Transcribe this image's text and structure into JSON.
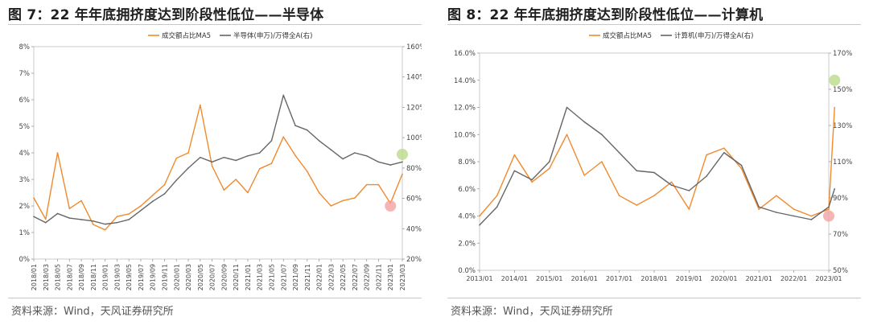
{
  "left": {
    "title": "图 7：22 年年底拥挤度达到阶段性低位——半导体",
    "source": "资料来源：Wind，天风证券研究所",
    "chart_data": {
      "type": "line",
      "legend": [
        "成交额占比MA5",
        "半导体(申万)/万得全A(右)"
      ],
      "legend_placement": "top-center",
      "x_ticks": [
        "2018/01",
        "2018/03",
        "2018/05",
        "2018/07",
        "2018/09",
        "2018/11",
        "2019/01",
        "2019/03",
        "2019/05",
        "2019/07",
        "2019/09",
        "2019/11",
        "2020/01",
        "2020/03",
        "2020/05",
        "2020/07",
        "2020/09",
        "2020/11",
        "2021/01",
        "2021/03",
        "2021/05",
        "2021/07",
        "2021/09",
        "2021/11",
        "2022/01",
        "2022/03",
        "2022/05",
        "2022/07",
        "2022/09",
        "2022/11",
        "2023/01",
        "2023/03"
      ],
      "y_left": {
        "min": 0,
        "max": 8,
        "ticks": [
          "0%",
          "1%",
          "2%",
          "3%",
          "4%",
          "5%",
          "6%",
          "7%",
          "8%"
        ]
      },
      "y_right": {
        "min": 20,
        "max": 160,
        "ticks": [
          "20%",
          "40%",
          "60%",
          "80%",
          "100%",
          "120%",
          "140%",
          "160%"
        ]
      },
      "series": [
        {
          "name": "成交额占比MA5",
          "axis": "left",
          "color": "#F08A2E",
          "x": [
            "2018/01",
            "2018/03",
            "2018/05",
            "2018/07",
            "2018/09",
            "2018/11",
            "2019/01",
            "2019/03",
            "2019/05",
            "2019/07",
            "2019/09",
            "2019/11",
            "2020/01",
            "2020/03",
            "2020/05",
            "2020/07",
            "2020/09",
            "2020/11",
            "2021/01",
            "2021/03",
            "2021/05",
            "2021/07",
            "2021/09",
            "2021/11",
            "2022/01",
            "2022/03",
            "2022/05",
            "2022/07",
            "2022/09",
            "2022/11",
            "2023/01",
            "2023/03"
          ],
          "values": [
            2.3,
            1.5,
            4.0,
            1.9,
            2.2,
            1.3,
            1.1,
            1.6,
            1.7,
            2.0,
            2.4,
            2.8,
            3.8,
            4.0,
            5.8,
            3.5,
            2.6,
            3.0,
            2.5,
            3.4,
            3.6,
            4.6,
            3.9,
            3.3,
            2.5,
            2.0,
            2.2,
            2.3,
            2.8,
            2.8,
            2.1,
            3.2
          ]
        },
        {
          "name": "半导体(申万)/万得全A(右)",
          "axis": "right",
          "color": "#666666",
          "x": [
            "2018/01",
            "2018/03",
            "2018/05",
            "2018/07",
            "2018/09",
            "2018/11",
            "2019/01",
            "2019/03",
            "2019/05",
            "2019/07",
            "2019/09",
            "2019/11",
            "2020/01",
            "2020/03",
            "2020/05",
            "2020/07",
            "2020/09",
            "2020/11",
            "2021/01",
            "2021/03",
            "2021/05",
            "2021/07",
            "2021/09",
            "2021/11",
            "2022/01",
            "2022/03",
            "2022/05",
            "2022/07",
            "2022/09",
            "2022/11",
            "2023/01",
            "2023/03"
          ],
          "values": [
            48,
            44,
            50,
            47,
            46,
            45,
            43,
            44,
            46,
            52,
            58,
            63,
            72,
            80,
            87,
            84,
            87,
            85,
            88,
            90,
            98,
            128,
            108,
            105,
            98,
            92,
            86,
            90,
            88,
            84,
            82,
            84
          ]
        }
      ],
      "markers": [
        {
          "axis": "right",
          "x": "2023/03",
          "y": 89,
          "color": "#B9DB8A"
        },
        {
          "axis": "left",
          "x": "2023/01",
          "y": 2.0,
          "color": "#F4A3A3"
        }
      ]
    }
  },
  "right": {
    "title": "图 8：22 年年底拥挤度达到阶段性低位——计算机",
    "source": "资料来源：Wind，天风证券研究所",
    "chart_data": {
      "type": "line",
      "legend": [
        "成交额占比MA5",
        "计算机(申万)/万得全A(右)"
      ],
      "legend_placement": "top-center",
      "x_ticks": [
        "2013/01",
        "2014/01",
        "2015/01",
        "2016/01",
        "2017/01",
        "2018/01",
        "2019/01",
        "2020/01",
        "2021/01",
        "2022/01",
        "2023/01"
      ],
      "y_left": {
        "min": 0,
        "max": 16,
        "ticks": [
          "0.0%",
          "2.0%",
          "4.0%",
          "6.0%",
          "8.0%",
          "10.0%",
          "12.0%",
          "14.0%",
          "16.0%"
        ]
      },
      "y_right": {
        "min": 50,
        "max": 170,
        "ticks": [
          "50%",
          "70%",
          "90%",
          "110%",
          "130%",
          "150%",
          "170%"
        ]
      },
      "series": [
        {
          "name": "成交额占比MA5",
          "axis": "left",
          "color": "#F08A2E",
          "x": [
            "2013/01",
            "2013/07",
            "2014/01",
            "2014/07",
            "2015/01",
            "2015/07",
            "2016/01",
            "2016/07",
            "2017/01",
            "2017/07",
            "2018/01",
            "2018/07",
            "2019/01",
            "2019/07",
            "2020/01",
            "2020/07",
            "2021/01",
            "2021/07",
            "2022/01",
            "2022/07",
            "2023/01",
            "2023/03"
          ],
          "values": [
            4.0,
            5.5,
            8.5,
            6.5,
            7.5,
            10.0,
            7.0,
            8.0,
            5.5,
            4.8,
            5.5,
            6.5,
            4.5,
            8.5,
            9.0,
            7.5,
            4.5,
            5.5,
            4.5,
            4.0,
            4.5,
            12.0
          ]
        },
        {
          "name": "计算机(申万)/万得全A(右)",
          "axis": "right",
          "color": "#666666",
          "x": [
            "2013/01",
            "2013/07",
            "2014/01",
            "2014/07",
            "2015/01",
            "2015/07",
            "2016/01",
            "2016/07",
            "2017/01",
            "2017/07",
            "2018/01",
            "2018/07",
            "2019/01",
            "2019/07",
            "2020/01",
            "2020/07",
            "2021/01",
            "2021/07",
            "2022/01",
            "2022/07",
            "2023/01",
            "2023/03"
          ],
          "values": [
            75,
            85,
            105,
            100,
            110,
            140,
            132,
            125,
            115,
            105,
            104,
            97,
            94,
            102,
            115,
            108,
            85,
            82,
            80,
            78,
            85,
            95
          ]
        }
      ],
      "markers": [
        {
          "axis": "right",
          "x": "2023/03",
          "y": 155,
          "color": "#B9DB8A"
        },
        {
          "axis": "left",
          "x": "2023/01",
          "y": 4.0,
          "color": "#F4A3A3"
        }
      ]
    }
  }
}
